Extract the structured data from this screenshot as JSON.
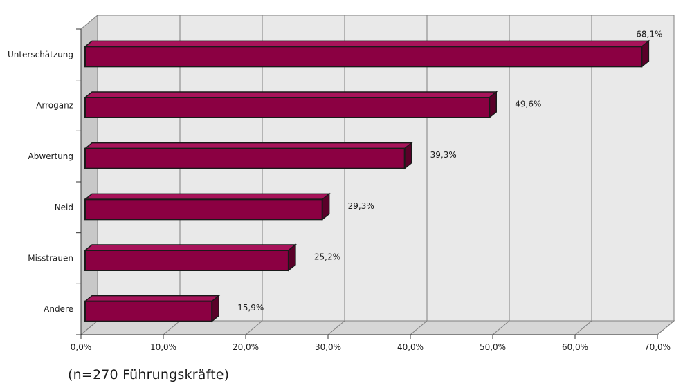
{
  "chart_data": {
    "type": "bar",
    "orientation": "horizontal",
    "style": "3d",
    "categories": [
      "Unterschätzung",
      "Arroganz",
      "Abwertung",
      "Neid",
      "Misstrauen",
      "Andere"
    ],
    "values": [
      68.1,
      49.6,
      39.3,
      29.3,
      25.2,
      15.9
    ],
    "data_labels": [
      "68,1%",
      "49,6%",
      "39,3%",
      "29,3%",
      "25,2%",
      "15,9%"
    ],
    "xlim": [
      0,
      70
    ],
    "x_ticks": [
      0,
      10,
      20,
      30,
      40,
      50,
      60,
      70
    ],
    "x_tick_labels": [
      "0,0%",
      "10,0%",
      "20,0%",
      "30,0%",
      "40,0%",
      "50,0%",
      "60,0%",
      "70,0%"
    ],
    "grid": "vertical",
    "legend": "none",
    "title": "",
    "xlabel": "",
    "ylabel": ""
  },
  "colors": {
    "bar_front": "#8b0042",
    "bar_top": "#a8135a",
    "bar_side": "#5a0029",
    "bar_outline": "#1a1a1a",
    "wall_back": "#e9e9e9",
    "wall_left": "#c8c8c8",
    "floor": "#d6d6d6",
    "grid": "#7f7f7f"
  },
  "footnote": "(n=270 Führungskräfte)"
}
